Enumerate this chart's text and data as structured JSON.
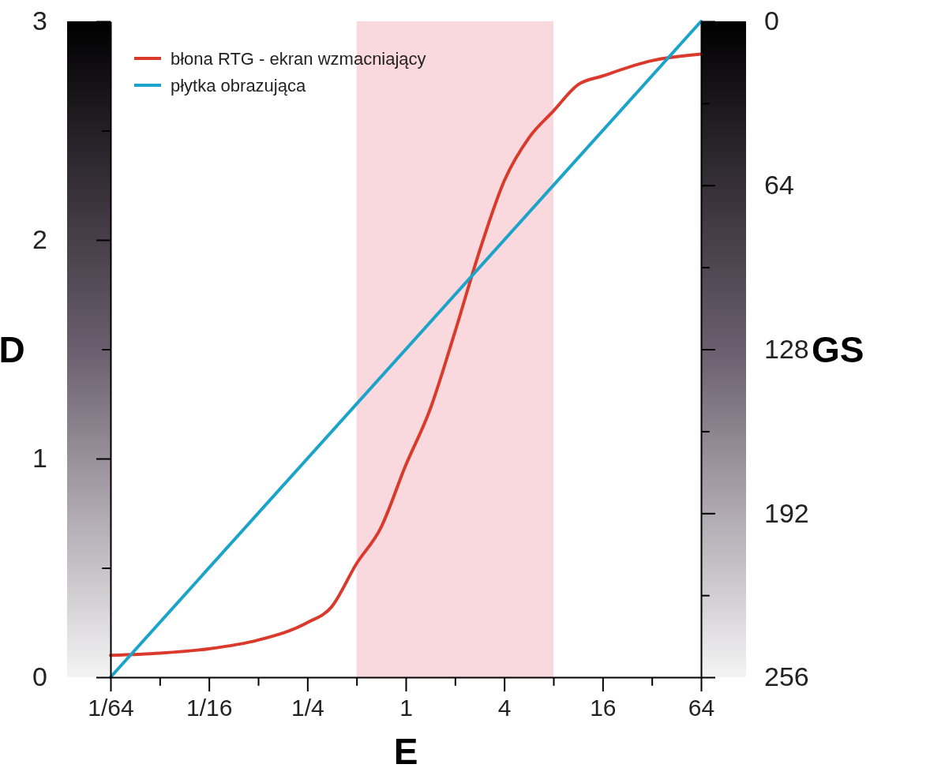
{
  "chart_data": {
    "type": "line",
    "xlabel": "E",
    "ylabel": "D",
    "y2label": "GS",
    "log": "x",
    "xlim": [
      0.015625,
      64
    ],
    "xticks": [
      {
        "value": 0.015625,
        "label": "1/64"
      },
      {
        "value": 0.03125,
        "label": null
      },
      {
        "value": 0.0625,
        "label": "1/16"
      },
      {
        "value": 0.125,
        "label": null
      },
      {
        "value": 0.25,
        "label": "1/4"
      },
      {
        "value": 0.5,
        "label": null
      },
      1,
      {
        "value": 2,
        "label": null
      },
      4,
      {
        "value": 8,
        "label": null
      },
      16,
      {
        "value": 32,
        "label": null
      },
      64
    ],
    "ylim": [
      0,
      3
    ],
    "yticks": [
      0,
      {
        "value": 0.5,
        "label": null
      },
      1,
      {
        "value": 1.5,
        "label": null
      },
      2,
      {
        "value": 2.5,
        "label": null
      },
      3
    ],
    "y2lim": [
      256,
      0
    ],
    "y2ticks": [
      0,
      {
        "value": 32,
        "label": null
      },
      64,
      {
        "value": 96,
        "label": null
      },
      128,
      {
        "value": 160,
        "label": null
      },
      192,
      {
        "value": 224,
        "label": null
      },
      256
    ],
    "bands": [
      {
        "axis": "x",
        "from": 0.5,
        "to": 8,
        "color": "#f9d9dd"
      }
    ],
    "legend": "top left",
    "series": [
      {
        "name": "błona RTG - ekran wzmacniający",
        "color": "#d93a2b",
        "x": [
          0.015625,
          0.03125,
          0.0625,
          0.125,
          0.25,
          0.35,
          0.5,
          0.7,
          1,
          1.4,
          2,
          2.8,
          4,
          5.7,
          8,
          11.3,
          16,
          32,
          64
        ],
        "values": [
          0.1,
          0.11,
          0.13,
          0.17,
          0.25,
          0.32,
          0.52,
          0.68,
          0.97,
          1.22,
          1.58,
          1.94,
          2.27,
          2.47,
          2.59,
          2.71,
          2.75,
          2.82,
          2.85
        ]
      },
      {
        "name": "płytka obrazująca",
        "color": "#1ba3c9",
        "x": [
          0.015625,
          64
        ],
        "values": [
          0,
          3
        ]
      }
    ]
  }
}
